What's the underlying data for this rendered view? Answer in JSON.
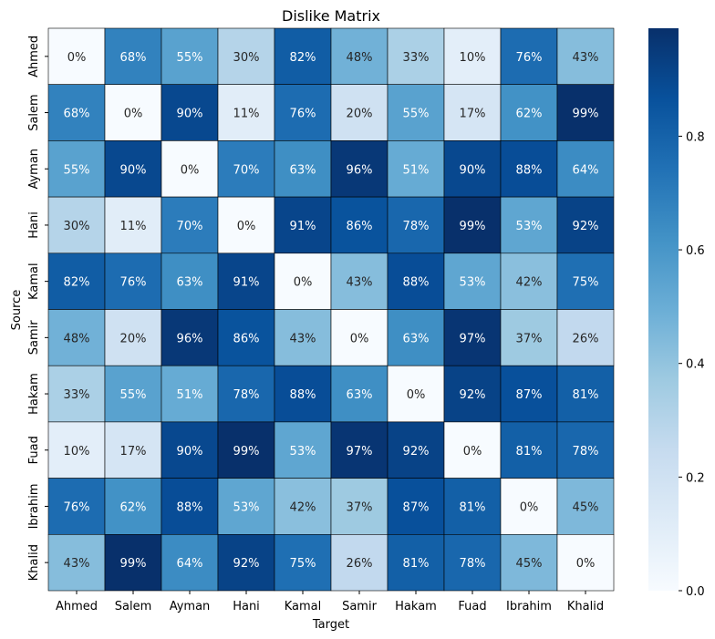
{
  "chart_data": {
    "type": "heatmap",
    "title": "Dislike Matrix",
    "xlabel": "Target",
    "ylabel": "Source",
    "rows": [
      "Ahmed",
      "Salem",
      "Ayman",
      "Hani",
      "Kamal",
      "Samir",
      "Hakam",
      "Fuad",
      "Ibrahim",
      "Khalid"
    ],
    "cols": [
      "Ahmed",
      "Salem",
      "Ayman",
      "Hani",
      "Kamal",
      "Samir",
      "Hakam",
      "Fuad",
      "Ibrahim",
      "Khalid"
    ],
    "values": [
      [
        0,
        68,
        55,
        30,
        82,
        48,
        33,
        10,
        76,
        43
      ],
      [
        68,
        0,
        90,
        11,
        76,
        20,
        55,
        17,
        62,
        99
      ],
      [
        55,
        90,
        0,
        70,
        63,
        96,
        51,
        90,
        88,
        64
      ],
      [
        30,
        11,
        70,
        0,
        91,
        86,
        78,
        99,
        53,
        92
      ],
      [
        82,
        76,
        63,
        91,
        0,
        43,
        88,
        53,
        42,
        75
      ],
      [
        48,
        20,
        96,
        86,
        43,
        0,
        63,
        97,
        37,
        26
      ],
      [
        33,
        55,
        51,
        78,
        88,
        63,
        0,
        92,
        87,
        81
      ],
      [
        10,
        17,
        90,
        99,
        53,
        97,
        92,
        0,
        81,
        78
      ],
      [
        76,
        62,
        88,
        53,
        42,
        37,
        87,
        81,
        0,
        45
      ],
      [
        43,
        99,
        64,
        92,
        75,
        26,
        81,
        78,
        45,
        0
      ]
    ],
    "value_format": "percent",
    "colormap": "Blues",
    "colorbar": {
      "range": [
        0,
        0.99
      ],
      "ticks": [
        "0.0",
        "0.2",
        "0.4",
        "0.6",
        "0.8"
      ]
    },
    "cell_borders": "black",
    "grid": false,
    "legend": "colorbar-right"
  }
}
